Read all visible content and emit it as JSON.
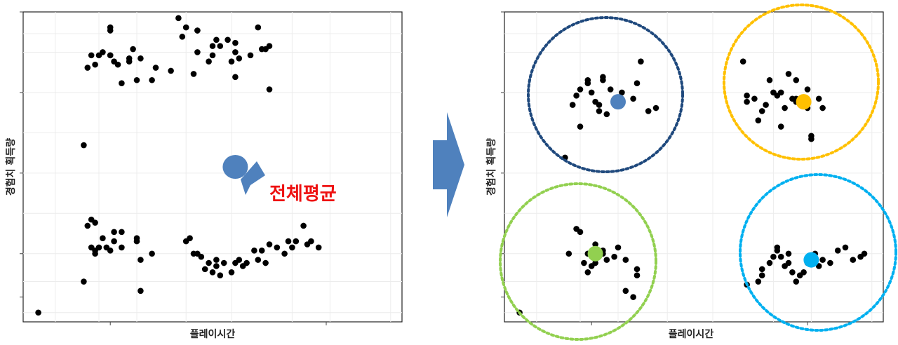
{
  "chart_data": [
    {
      "type": "scatter",
      "xlabel": "플레이시간",
      "ylabel": "경험치 획득량",
      "xlim": [
        0,
        100
      ],
      "ylim": [
        0,
        100
      ],
      "grid": true,
      "points": [
        [
          4,
          3
        ],
        [
          17,
          31
        ],
        [
          18,
          33
        ],
        [
          19,
          32
        ],
        [
          18,
          24
        ],
        [
          19,
          23
        ],
        [
          20,
          24
        ],
        [
          21,
          27
        ],
        [
          22,
          24
        ],
        [
          19,
          22
        ],
        [
          23,
          23
        ],
        [
          24,
          26
        ],
        [
          24,
          29
        ],
        [
          26,
          24
        ],
        [
          26,
          29
        ],
        [
          30,
          26
        ],
        [
          30,
          27
        ],
        [
          31,
          20
        ],
        [
          34,
          22
        ],
        [
          16,
          13
        ],
        [
          31,
          10
        ],
        [
          16,
          57
        ],
        [
          17,
          82
        ],
        [
          18,
          86
        ],
        [
          19,
          83
        ],
        [
          20,
          86
        ],
        [
          21,
          87
        ],
        [
          23,
          86
        ],
        [
          23,
          94
        ],
        [
          23,
          95
        ],
        [
          23,
          86
        ],
        [
          24,
          84
        ],
        [
          25,
          83
        ],
        [
          26,
          77
        ],
        [
          28,
          84
        ],
        [
          28,
          85
        ],
        [
          29,
          88
        ],
        [
          30,
          78
        ],
        [
          31,
          85
        ],
        [
          34,
          78
        ],
        [
          35,
          82
        ],
        [
          39,
          81
        ],
        [
          41,
          98
        ],
        [
          42,
          92
        ],
        [
          43,
          95
        ],
        [
          45,
          80
        ],
        [
          46,
          94
        ],
        [
          46,
          94
        ],
        [
          46,
          87
        ],
        [
          49,
          84
        ],
        [
          50,
          86
        ],
        [
          50,
          89
        ],
        [
          51,
          91
        ],
        [
          52,
          89
        ],
        [
          54,
          91
        ],
        [
          55,
          84
        ],
        [
          56,
          90
        ],
        [
          56,
          87
        ],
        [
          56,
          79
        ],
        [
          57,
          85
        ],
        [
          60,
          86
        ],
        [
          62,
          95
        ],
        [
          63,
          88
        ],
        [
          64,
          88
        ],
        [
          65,
          89
        ],
        [
          65,
          75
        ],
        [
          43,
          26
        ],
        [
          44,
          27
        ],
        [
          45,
          22
        ],
        [
          46,
          22
        ],
        [
          47,
          21
        ],
        [
          48,
          17
        ],
        [
          49,
          19
        ],
        [
          50,
          16
        ],
        [
          51,
          20
        ],
        [
          51,
          18
        ],
        [
          52,
          15
        ],
        [
          53,
          19
        ],
        [
          55,
          16
        ],
        [
          56,
          19
        ],
        [
          57,
          20
        ],
        [
          58,
          18
        ],
        [
          59,
          19
        ],
        [
          61,
          23
        ],
        [
          62,
          20
        ],
        [
          63,
          23
        ],
        [
          64,
          19
        ],
        [
          65,
          25
        ],
        [
          67,
          24
        ],
        [
          69,
          22
        ],
        [
          70,
          26
        ],
        [
          71,
          24
        ],
        [
          72,
          26
        ],
        [
          74,
          31
        ],
        [
          75,
          25
        ],
        [
          76,
          26
        ],
        [
          78,
          24
        ]
      ],
      "overall_mean": [
        56,
        50
      ],
      "annotation": "전체평균"
    },
    {
      "type": "scatter",
      "xlabel": "플레이시간",
      "ylabel": "경험치 획득량",
      "xlim": [
        0,
        100
      ],
      "ylim": [
        0,
        100
      ],
      "grid": true,
      "points": [
        [
          4,
          3
        ],
        [
          17,
          22
        ],
        [
          19,
          30
        ],
        [
          20,
          29
        ],
        [
          22,
          22
        ],
        [
          21,
          19
        ],
        [
          23,
          18
        ],
        [
          22,
          16
        ],
        [
          24,
          25
        ],
        [
          25,
          22
        ],
        [
          24,
          19
        ],
        [
          26,
          22
        ],
        [
          26,
          23
        ],
        [
          29,
          21
        ],
        [
          32,
          20
        ],
        [
          35,
          17
        ],
        [
          32,
          10
        ],
        [
          34,
          8
        ],
        [
          35,
          15
        ],
        [
          27,
          20
        ],
        [
          30,
          24
        ],
        [
          16,
          53
        ],
        [
          18,
          70
        ],
        [
          19,
          73
        ],
        [
          20,
          63
        ],
        [
          20,
          75
        ],
        [
          22,
          78
        ],
        [
          22,
          77
        ],
        [
          23,
          74
        ],
        [
          24,
          71
        ],
        [
          25,
          70
        ],
        [
          25,
          68
        ],
        [
          26,
          79
        ],
        [
          26,
          78
        ],
        [
          27,
          67
        ],
        [
          28,
          75
        ],
        [
          31,
          74
        ],
        [
          34,
          72
        ],
        [
          35,
          77
        ],
        [
          36,
          84
        ],
        [
          38,
          68
        ],
        [
          40,
          69
        ],
        [
          63,
          84
        ],
        [
          64,
          73
        ],
        [
          64,
          71
        ],
        [
          66,
          72
        ],
        [
          67,
          65
        ],
        [
          68,
          68
        ],
        [
          69,
          70
        ],
        [
          70,
          78
        ],
        [
          71,
          74
        ],
        [
          72,
          73
        ],
        [
          73,
          74
        ],
        [
          73,
          63
        ],
        [
          74,
          69
        ],
        [
          75,
          80
        ],
        [
          76,
          72
        ],
        [
          77,
          72
        ],
        [
          77,
          78
        ],
        [
          77,
          71
        ],
        [
          79,
          72
        ],
        [
          80,
          69
        ],
        [
          80,
          75
        ],
        [
          81,
          59
        ],
        [
          81,
          60
        ],
        [
          83,
          72
        ],
        [
          84,
          69
        ],
        [
          64,
          12
        ],
        [
          67,
          13
        ],
        [
          68,
          15
        ],
        [
          68,
          17
        ],
        [
          70,
          19
        ],
        [
          71,
          21
        ],
        [
          72,
          23
        ],
        [
          72,
          24
        ],
        [
          73,
          21
        ],
        [
          74,
          18
        ],
        [
          75,
          22
        ],
        [
          75,
          19
        ],
        [
          76,
          16
        ],
        [
          77,
          13
        ],
        [
          78,
          15
        ],
        [
          79,
          16
        ],
        [
          80,
          19
        ],
        [
          81,
          21
        ],
        [
          82,
          22
        ],
        [
          83,
          18
        ],
        [
          84,
          20
        ],
        [
          86,
          19
        ],
        [
          88,
          23
        ],
        [
          90,
          24
        ],
        [
          92,
          20
        ],
        [
          94,
          21
        ],
        [
          95,
          22
        ]
      ],
      "centroids": [
        {
          "x": 30,
          "y": 71,
          "color": "#4f81bd"
        },
        {
          "x": 79,
          "y": 71,
          "color": "#ffc000"
        },
        {
          "x": 24,
          "y": 22,
          "color": "#92d050"
        },
        {
          "x": 81,
          "y": 20,
          "color": "#00b0f0"
        }
      ],
      "clusters": [
        {
          "color": "#1f497d"
        },
        {
          "color": "#ffc000"
        },
        {
          "color": "#92d050"
        },
        {
          "color": "#00b0f0"
        }
      ]
    }
  ]
}
